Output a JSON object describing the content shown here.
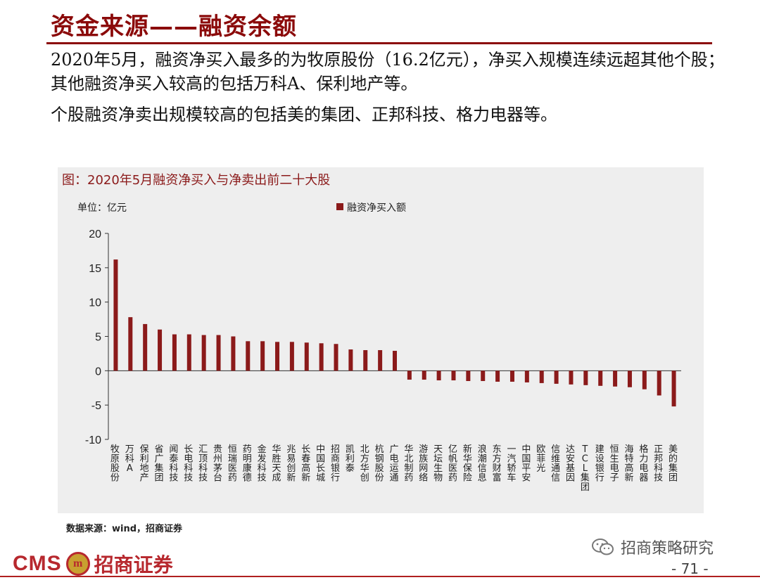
{
  "header": {
    "title": "资金来源——融资余额"
  },
  "bullets": [
    "2020年5月，融资净买入最多的为牧原股份（16.2亿元），净买入规模连续远超其他个股；其他融资净买入较高的包括万科A、保利地产等。",
    "个股融资净卖出规模较高的包括美的集团、正邦科技、格力电器等。"
  ],
  "chart_data": {
    "type": "bar",
    "title": "图：2020年5月融资净买入与净卖出前二十大股",
    "unit_label": "单位：亿元",
    "legend": "融资净买入额",
    "legend_position": "top-center",
    "series_color": "#8b1a1a",
    "grid": false,
    "ylim": [
      -10,
      20
    ],
    "yticks": [
      -10,
      -5,
      0,
      5,
      10,
      15,
      20
    ],
    "categories": [
      "牧原股份",
      "万科A",
      "保利地产",
      "省广集团",
      "闻泰科技",
      "长电科技",
      "汇顶科技",
      "贵州茅台",
      "恒瑞医药",
      "药明康德",
      "金发科技",
      "华胜天成",
      "兆易创新",
      "长春高新",
      "中国长城",
      "招商银行",
      "凯利泰",
      "北方华创",
      "杭钢股份",
      "广电运通",
      "华北制药",
      "游族网络",
      "天坛生物",
      "亿帆医药",
      "新华保险",
      "浪潮信息",
      "东方财富",
      "一汽轿车",
      "中国平安",
      "欧菲光",
      "信维通信",
      "达安基因",
      "TCL集团",
      "建设银行",
      "恒生电子",
      "海特高新",
      "格力电器",
      "正邦科技",
      "美的集团"
    ],
    "values": [
      16.2,
      7.8,
      6.8,
      6.0,
      5.3,
      5.3,
      5.2,
      5.2,
      5.0,
      4.3,
      4.3,
      4.2,
      4.2,
      4.1,
      4.0,
      3.9,
      3.1,
      3.0,
      3.0,
      2.9,
      -1.3,
      -1.3,
      -1.4,
      -1.4,
      -1.5,
      -1.5,
      -1.6,
      -1.6,
      -1.7,
      -1.8,
      -1.9,
      -2.0,
      -2.1,
      -2.2,
      -2.3,
      -2.4,
      -2.7,
      -3.6,
      -5.2
    ]
  },
  "source": "数据来源：wind，招商证券",
  "footer": {
    "brand_en": "CMS",
    "brand_logo_text": "m",
    "brand_cn": "招商证券",
    "watermark": "招商策略研究",
    "page": "- 71 -"
  },
  "icons": {
    "wechat": "wechat-icon",
    "brand_logo": "cms-logo-icon"
  }
}
